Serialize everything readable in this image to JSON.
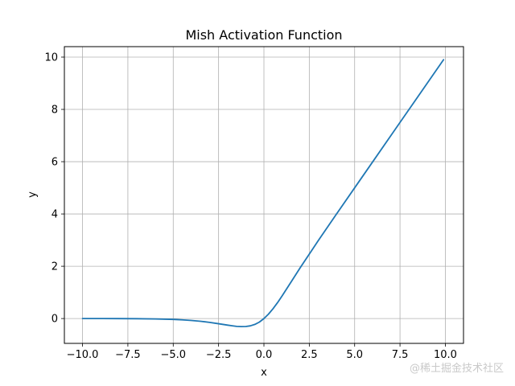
{
  "chart_data": {
    "type": "line",
    "title": "Mish Activation Function",
    "xlabel": "x",
    "ylabel": "y",
    "xlim": [
      -11.0,
      11.0
    ],
    "ylim": [
      -0.95,
      10.4
    ],
    "grid": true,
    "x_ticks": [
      -10.0,
      -7.5,
      -5.0,
      -2.5,
      0.0,
      2.5,
      5.0,
      7.5,
      10.0
    ],
    "x_tick_labels": [
      "−10.0",
      "−7.5",
      "−5.0",
      "−2.5",
      "0.0",
      "2.5",
      "5.0",
      "7.5",
      "10.0"
    ],
    "y_ticks": [
      0,
      2,
      4,
      6,
      8,
      10
    ],
    "y_tick_labels": [
      "0",
      "2",
      "4",
      "6",
      "8",
      "10"
    ],
    "series": [
      {
        "color": "#1f77b4",
        "x": [
          -10.0,
          -9.0,
          -8.0,
          -7.0,
          -6.0,
          -5.0,
          -4.5,
          -4.0,
          -3.5,
          -3.0,
          -2.5,
          -2.0,
          -1.75,
          -1.5,
          -1.25,
          -1.0,
          -0.75,
          -0.5,
          -0.25,
          0.0,
          0.25,
          0.5,
          0.75,
          1.0,
          1.5,
          2.0,
          2.5,
          3.0,
          4.0,
          5.0,
          6.0,
          7.0,
          8.0,
          9.0,
          9.9
        ],
        "y": [
          -0.0005,
          -0.0011,
          -0.0027,
          -0.0064,
          -0.0148,
          -0.0336,
          -0.0498,
          -0.0726,
          -0.1044,
          -0.1456,
          -0.198,
          -0.2525,
          -0.278,
          -0.2998,
          -0.3085,
          -0.3034,
          -0.2794,
          -0.2237,
          -0.135,
          0.0,
          0.169,
          0.3752,
          0.609,
          0.8651,
          1.4033,
          1.944,
          2.4656,
          2.9865,
          3.9974,
          4.9996,
          6.0,
          7.0,
          8.0,
          9.0,
          9.9
        ]
      }
    ]
  },
  "watermark": "@稀土掘金技术社区"
}
